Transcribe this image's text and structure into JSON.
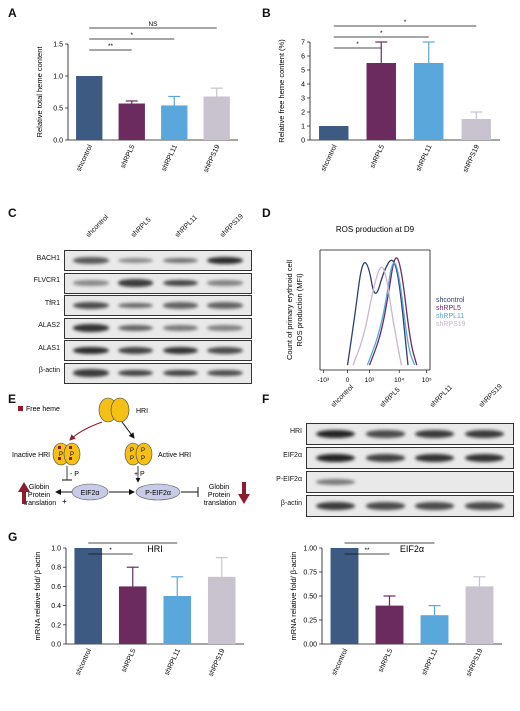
{
  "panels": {
    "A": "A",
    "B": "B",
    "C": "C",
    "D": "D",
    "E": "E",
    "F": "F",
    "G": "G"
  },
  "chart_data": [
    {
      "panel": "A",
      "type": "bar",
      "categories": [
        "shcontrol",
        "shRPL5",
        "shRPL11",
        "shRPS19"
      ],
      "values": [
        1.0,
        0.57,
        0.54,
        0.68
      ],
      "errors": [
        0,
        0.04,
        0.14,
        0.13
      ],
      "colors": [
        "#3c5a82",
        "#6b2b5e",
        "#5aa7dc",
        "#c9c3cf"
      ],
      "ylabel": "Relative total heme content",
      "yticks": [
        "0.0",
        "0.5",
        "1.0",
        "1.5"
      ],
      "ylim": [
        0,
        1.5
      ],
      "significance": [
        {
          "from": 0,
          "to": 1,
          "label": "**"
        },
        {
          "from": 0,
          "to": 2,
          "label": "*"
        },
        {
          "from": 0,
          "to": 3,
          "label": "NS"
        }
      ]
    },
    {
      "panel": "B",
      "type": "bar",
      "categories": [
        "shcontrol",
        "shRPL5",
        "shRPL11",
        "shRPS19"
      ],
      "values": [
        1.0,
        5.5,
        5.5,
        1.5
      ],
      "errors": [
        0,
        1.5,
        1.5,
        0.5
      ],
      "colors": [
        "#3c5a82",
        "#6b2b5e",
        "#5aa7dc",
        "#c9c3cf"
      ],
      "ylabel": "Relative free heme content (%)",
      "yticks": [
        "0",
        "1",
        "2",
        "3",
        "4",
        "5",
        "6",
        "7"
      ],
      "ylim": [
        0,
        7
      ],
      "significance": [
        {
          "from": 0,
          "to": 1,
          "label": "*"
        },
        {
          "from": 0,
          "to": 2,
          "label": "*"
        },
        {
          "from": 0,
          "to": 3,
          "label": "*"
        }
      ]
    },
    {
      "panel": "D",
      "type": "line",
      "title": "ROS production at D9",
      "ylabel_lines": [
        "Count of primary erythroid cell",
        "ROS production (MFI)"
      ],
      "xticks": [
        "-10³",
        "0",
        "10³",
        "10⁴",
        "10⁵"
      ],
      "series": [
        {
          "name": "shcontrol",
          "color": "#2d3f73"
        },
        {
          "name": "shRPL5",
          "color": "#6b2b5e"
        },
        {
          "name": "shRPL11",
          "color": "#5aa7dc"
        },
        {
          "name": "shRPS19",
          "color": "#c9b6cf"
        }
      ]
    },
    {
      "panel": "G-left",
      "type": "bar",
      "title": "HRI",
      "categories": [
        "shcontrol",
        "shRPL5",
        "shRPL11",
        "shRPS19"
      ],
      "values": [
        1.0,
        0.6,
        0.5,
        0.7
      ],
      "errors": [
        0,
        0.2,
        0.2,
        0.2
      ],
      "colors": [
        "#3c5a82",
        "#6b2b5e",
        "#5aa7dc",
        "#c9c3cf"
      ],
      "ylabel": "mRNA relative fold/ β-actin",
      "yticks": [
        "0.0",
        "0.2",
        "0.4",
        "0.6",
        "0.8",
        "1.0"
      ],
      "ylim": [
        0,
        1.0
      ],
      "significance": [
        {
          "from": 0,
          "to": 1,
          "label": "*"
        },
        {
          "from": 0,
          "to": 2,
          "label": "*"
        },
        {
          "from": 0,
          "to": 3,
          "label": "*"
        }
      ]
    },
    {
      "panel": "G-right",
      "type": "bar",
      "title": "EIF2α",
      "categories": [
        "shcontrol",
        "shRPL5",
        "shRPL11",
        "shRPS19"
      ],
      "values": [
        1.0,
        0.4,
        0.3,
        0.6
      ],
      "errors": [
        0,
        0.1,
        0.1,
        0.1
      ],
      "colors": [
        "#3c5a82",
        "#6b2b5e",
        "#5aa7dc",
        "#c9c3cf"
      ],
      "ylabel": "mRNA relative fold/ β-actin",
      "yticks": [
        "0.00",
        "0.25",
        "0.50",
        "0.75",
        "1.00"
      ],
      "ylim": [
        0,
        1.0
      ],
      "significance": [
        {
          "from": 0,
          "to": 1,
          "label": "**"
        },
        {
          "from": 0,
          "to": 2,
          "label": "**"
        },
        {
          "from": 0,
          "to": 3,
          "label": "**"
        }
      ]
    }
  ],
  "blot_c": {
    "lanes": [
      "shcontrol",
      "shRPL5",
      "shRPL11",
      "shRPS19"
    ],
    "rows": [
      {
        "label": "BACH1",
        "intensity": [
          0.6,
          0.3,
          0.45,
          0.9
        ]
      },
      {
        "label": "FLVCR1",
        "intensity": [
          0.3,
          0.8,
          0.75,
          0.35
        ]
      },
      {
        "label": "TfR1",
        "intensity": [
          0.7,
          0.5,
          0.55,
          0.55
        ]
      },
      {
        "label": "ALAS2",
        "intensity": [
          0.85,
          0.55,
          0.4,
          0.35
        ]
      },
      {
        "label": "ALAS1",
        "intensity": [
          0.9,
          0.75,
          0.85,
          0.7
        ]
      },
      {
        "label": "β-actin",
        "intensity": [
          0.8,
          0.75,
          0.75,
          0.7
        ]
      }
    ]
  },
  "blot_f": {
    "lanes": [
      "shcontrol",
      "shRPL5",
      "shRPL11",
      "shRPS19"
    ],
    "rows": [
      {
        "label": "HRI",
        "intensity": [
          0.95,
          0.7,
          0.8,
          0.8
        ]
      },
      {
        "label": "EIF2α",
        "intensity": [
          0.95,
          0.75,
          0.85,
          0.85
        ]
      },
      {
        "label": "P-EIF2α",
        "intensity": [
          0.4,
          0,
          0,
          0
        ]
      },
      {
        "label": "β-actin",
        "intensity": [
          0.8,
          0.7,
          0.7,
          0.7
        ]
      }
    ]
  },
  "diagram_e": {
    "free_heme": "Free heme",
    "hri": "HRI",
    "inactive_hri": "Inactive HRI",
    "active_hri": "Active HRI",
    "minus_p": "- P",
    "plus_p": "+ P",
    "p": "P",
    "eif2a": "EIF2α",
    "p_eif2a": "P-EIF2α",
    "plus": "+",
    "globin_left": [
      "Globin",
      "Protein",
      "translation"
    ],
    "globin_right": [
      "Globin",
      "Protein",
      "translation"
    ]
  }
}
